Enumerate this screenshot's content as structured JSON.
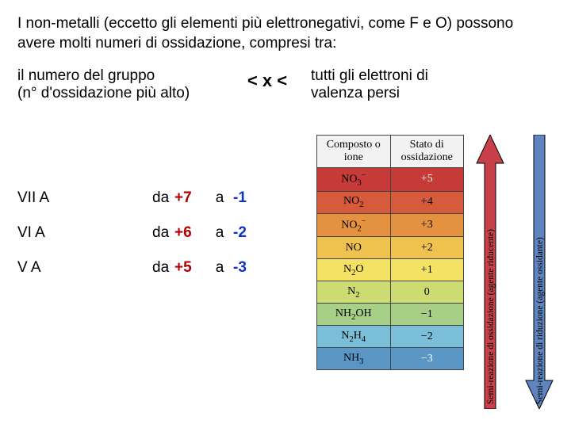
{
  "title_line": "I non-metalli (eccetto gli elementi più elettronegativi, come F e O) possono avere molti numeri di ossidazione, compresi tra:",
  "legend": {
    "left_l1": "il numero del gruppo",
    "left_l2": "(n° d'ossidazione più alto)",
    "mid": "<  x  <",
    "right_l1": "tutti gli elettroni di",
    "right_l2": "valenza persi"
  },
  "groups": [
    {
      "label": "VII A",
      "da": "da",
      "plus": "+7",
      "a": "a",
      "minus": "-1"
    },
    {
      "label": "VI A",
      "da": "da",
      "plus": "+6",
      "a": "a",
      "minus": "-2"
    },
    {
      "label": "V A",
      "da": "da",
      "plus": "+5",
      "a": "a",
      "minus": "-3"
    }
  ],
  "ox_table": {
    "head1": "Composto o ione",
    "head2": "Stato di ossidazione",
    "rows": [
      {
        "formula_html": "NO<sub>3</sub><sup>−</sup>",
        "state": "+5",
        "bg": "#c63a37",
        "state_fg": "#ffffff"
      },
      {
        "formula_html": "NO<sub>2</sub>",
        "state": "+4",
        "bg": "#d65a3c",
        "state_fg": "#000000"
      },
      {
        "formula_html": "NO<sub>2</sub><sup>−</sup>",
        "state": "+3",
        "bg": "#e49140",
        "state_fg": "#000000"
      },
      {
        "formula_html": "NO",
        "state": "+2",
        "bg": "#efc24f",
        "state_fg": "#000000"
      },
      {
        "formula_html": "N<sub>2</sub>O",
        "state": "+1",
        "bg": "#f4e264",
        "state_fg": "#000000"
      },
      {
        "formula_html": "N<sub>2</sub>",
        "state": "0",
        "bg": "#cddc72",
        "state_fg": "#000000"
      },
      {
        "formula_html": "NH<sub>2</sub>OH",
        "state": "−1",
        "bg": "#a7cf87",
        "state_fg": "#000000"
      },
      {
        "formula_html": "N<sub>2</sub>H<sub>4</sub>",
        "state": "−2",
        "bg": "#7abed8",
        "state_fg": "#000000"
      },
      {
        "formula_html": "NH<sub>3</sub>",
        "state": "−3",
        "bg": "#5a97c6",
        "state_fg": "#ffffff"
      }
    ]
  },
  "arrows": {
    "red": {
      "fill": "#c8404a",
      "label": "Semi-reazione di ossidazione (agente riducente)"
    },
    "blue": {
      "fill": "#5e85c0",
      "label": "Semi-reazione di riduzione (agente ossidante)"
    }
  },
  "colors": {
    "pos": "#b00000",
    "neg": "#1030d0"
  }
}
